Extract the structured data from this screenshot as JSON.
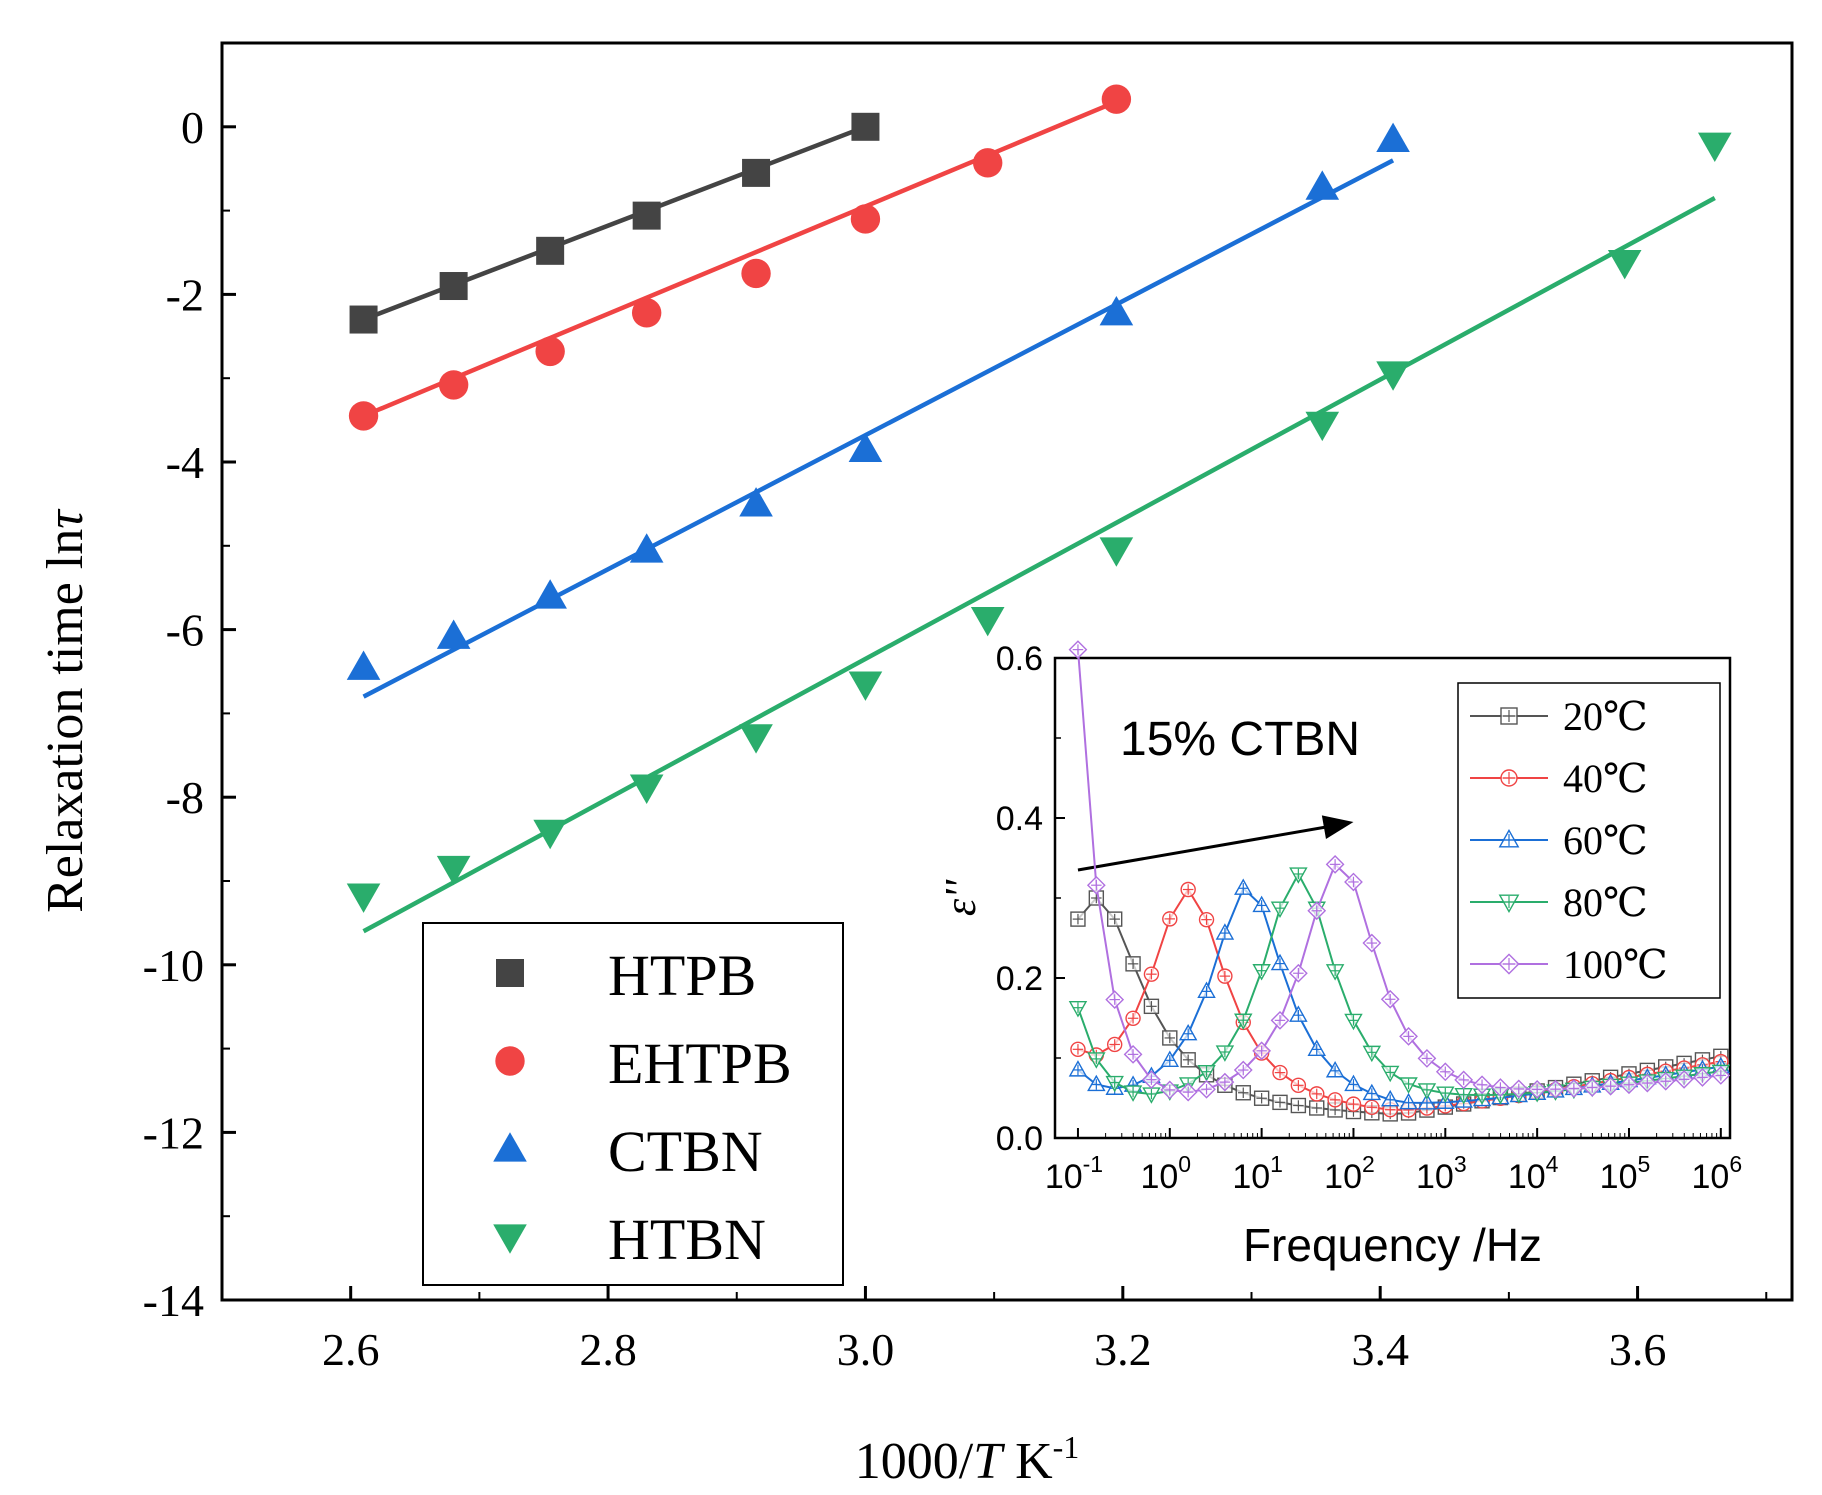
{
  "chart_data": [
    {
      "type": "scatter",
      "xlabel_prefix": "1000/",
      "xlabel_var": "T",
      "xlabel_unit": " K",
      "xlabel_sup": "-1",
      "ylabel_prefix": "Relaxation time ln",
      "ylabel_var": "τ",
      "xlim": [
        2.5,
        3.72
      ],
      "ylim": [
        -14,
        1.0
      ],
      "xticks": [
        2.6,
        2.8,
        3.0,
        3.2,
        3.4,
        3.6
      ],
      "xtick_labels": [
        "2.6",
        "2.8",
        "3.0",
        "3.2",
        "3.4",
        "3.6"
      ],
      "yticks": [
        0,
        -2,
        -4,
        -6,
        -8,
        -10,
        -12,
        -14
      ],
      "ytick_labels": [
        "0",
        "-2",
        "-4",
        "-6",
        "-8",
        "-10",
        "-12",
        "-14"
      ],
      "legend_position": "bottom-left",
      "series": [
        {
          "name": "HTPB",
          "marker": "square",
          "color": "#444444",
          "line_color": "#444444",
          "x": [
            2.61,
            2.68,
            2.755,
            2.83,
            2.915,
            3.0
          ],
          "y": [
            -2.3,
            -1.9,
            -1.48,
            -1.06,
            -0.55,
            0.0
          ],
          "fit": [
            [
              2.61,
              -2.3
            ],
            [
              3.0,
              0.0
            ]
          ]
        },
        {
          "name": "EHTPB",
          "marker": "circle",
          "color": "#f04444",
          "line_color": "#f04444",
          "x": [
            2.61,
            2.68,
            2.755,
            2.83,
            2.915,
            3.0,
            3.095,
            3.195
          ],
          "y": [
            -3.45,
            -3.08,
            -2.68,
            -2.22,
            -1.75,
            -1.1,
            -0.43,
            0.33
          ],
          "fit": [
            [
              2.61,
              -3.45
            ],
            [
              3.195,
              0.3
            ]
          ]
        },
        {
          "name": "CTBN",
          "marker": "triangle-up",
          "color": "#1b6fd6",
          "line_color": "#1b6fd6",
          "x": [
            2.61,
            2.68,
            2.755,
            2.83,
            2.915,
            3.0,
            3.195,
            3.355,
            3.41
          ],
          "y": [
            -6.45,
            -6.08,
            -5.6,
            -5.05,
            -4.5,
            -3.85,
            -2.22,
            -0.72,
            -0.15
          ],
          "fit": [
            [
              2.61,
              -6.8
            ],
            [
              3.41,
              -0.4
            ]
          ]
        },
        {
          "name": "HTBN",
          "marker": "triangle-down",
          "color": "#2aad6c",
          "line_color": "#2aad6c",
          "x": [
            2.61,
            2.68,
            2.755,
            2.83,
            2.915,
            3.0,
            3.095,
            3.195,
            3.355,
            3.41,
            3.59,
            3.66
          ],
          "y": [
            -9.18,
            -8.85,
            -8.42,
            -7.88,
            -7.28,
            -6.65,
            -5.88,
            -5.05,
            -3.55,
            -2.95,
            -1.62,
            -0.22
          ],
          "fit": [
            [
              2.61,
              -9.6
            ],
            [
              3.66,
              -0.85
            ]
          ]
        }
      ]
    },
    {
      "type": "line",
      "annotation": "15% CTBN",
      "xlabel": "Frequency /Hz",
      "ylabel_var": "ε''",
      "xscale": "log",
      "xlim_log10": [
        -1.25,
        6.1
      ],
      "ylim": [
        0,
        0.6
      ],
      "xticks_log10": [
        -1,
        0,
        1,
        2,
        3,
        4,
        5,
        6
      ],
      "xtick_base": "10",
      "xtick_exponents": [
        "-1",
        "0",
        "1",
        "2",
        "3",
        "4",
        "5",
        "6"
      ],
      "yticks": [
        0.0,
        0.2,
        0.4,
        0.6
      ],
      "ytick_labels": [
        "0.0",
        "0.2",
        "0.4",
        "0.6"
      ],
      "legend_position": "top-right",
      "arrow": {
        "from": [
          -1.0,
          0.335
        ],
        "to": [
          2.0,
          0.395
        ]
      },
      "series": [
        {
          "name": "20℃",
          "color": "#555555",
          "marker": "square-plus",
          "peak_log10": -0.8,
          "peak": 0.3,
          "width": 0.62,
          "base": 0.02,
          "low_rise": 0.0,
          "hf_slope": 0.012
        },
        {
          "name": "40℃",
          "color": "#f04444",
          "marker": "circle-plus",
          "peak_log10": 0.2,
          "peak": 0.31,
          "width": 0.52,
          "base": 0.02,
          "low_rise": 0.045,
          "hf_slope": 0.011
        },
        {
          "name": "60℃",
          "color": "#1b6fd6",
          "marker": "triangle-up-plus",
          "peak_log10": 0.85,
          "peak": 0.315,
          "width": 0.5,
          "base": 0.02,
          "low_rise": 0.045,
          "hf_slope": 0.01
        },
        {
          "name": "80℃",
          "color": "#2aad6c",
          "marker": "triangle-down-plus",
          "peak_log10": 1.4,
          "peak": 0.33,
          "width": 0.5,
          "base": 0.02,
          "low_rise": 0.13,
          "hf_slope": 0.009
        },
        {
          "name": "100℃",
          "color": "#b070e0",
          "marker": "diamond-plus",
          "peak_log10": 1.85,
          "peak": 0.345,
          "width": 0.52,
          "base": 0.02,
          "low_rise": 0.58,
          "hf_slope": 0.008
        }
      ]
    }
  ]
}
